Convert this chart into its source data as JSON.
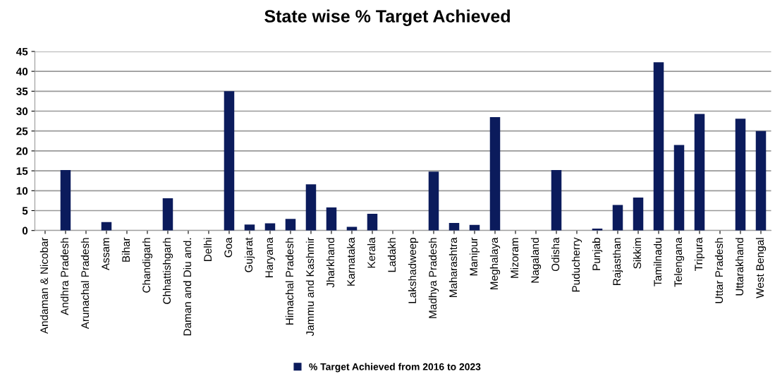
{
  "chart_data": {
    "type": "bar",
    "title": "State wise % Target Achieved",
    "categories": [
      "Andaman & Nicobar",
      "Andhra Pradesh",
      "Arunachal Pradesh",
      "Assam",
      "Bihar",
      "Chandigarh",
      "Chhattishgarh",
      "Daman and Diu and.",
      "Delhi",
      "Goa",
      "Gujarat",
      "Haryana",
      "Himachal Pradesh",
      "Jammu and Kashmir",
      "Jharkhand",
      "Karnataka",
      "Kerala",
      "Ladakh",
      "Lakshadweep",
      "Madhya Pradesh",
      "Maharashtra",
      "Manipur",
      "Meghalaya",
      "Mizoram",
      "Nagaland",
      "Odisha",
      "Puducherry",
      "Punjab",
      "Rajasthan",
      "Sikkim",
      "Tamilnadu",
      "Telengana",
      "Tripura",
      "Uttar Pradesh",
      "Uttarakhand",
      "West Bengal"
    ],
    "series": [
      {
        "name": "% Target Achieved from 2016 to 2023",
        "color": "#0b1b5c",
        "values": [
          0,
          15.2,
          0,
          2.1,
          0,
          0,
          8.1,
          0,
          0,
          35,
          1.5,
          1.8,
          2.9,
          11.6,
          5.8,
          0.9,
          4.2,
          0,
          0,
          14.8,
          1.9,
          1.4,
          28.5,
          0,
          0,
          15.2,
          0,
          0.5,
          6.4,
          8.3,
          42.3,
          21.5,
          29.3,
          0,
          28.1,
          25
        ]
      }
    ],
    "ylim": [
      0,
      45
    ],
    "yticks": [
      0,
      5,
      10,
      15,
      20,
      25,
      30,
      35,
      40,
      45
    ],
    "grid": "y",
    "legend": "bottom"
  }
}
